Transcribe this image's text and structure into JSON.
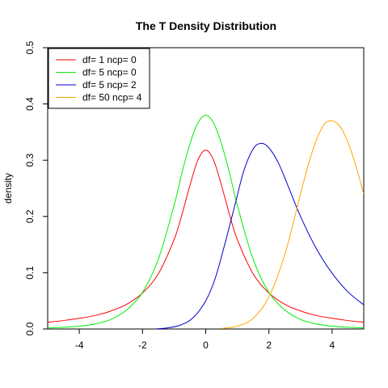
{
  "chart_data": {
    "type": "line",
    "title": "The T Density Distribution",
    "xlabel": "",
    "ylabel": "density",
    "xlim": [
      -5,
      5
    ],
    "ylim": [
      0,
      0.5
    ],
    "x_ticks": [
      -4,
      -2,
      0,
      2,
      4
    ],
    "x_tick_labels": [
      "-4",
      "-2",
      "0",
      "2",
      "4"
    ],
    "y_ticks": [
      0.0,
      0.1,
      0.2,
      0.3,
      0.4,
      0.5
    ],
    "y_tick_labels": [
      "0.0",
      "0.1",
      "0.2",
      "0.3",
      "0.4",
      "0.5"
    ],
    "grid": false,
    "legend_position": "top-left",
    "series": [
      {
        "name": "df= 1  ncp= 0",
        "color": "#ff0000",
        "x": [
          -5,
          -4.5,
          -4,
          -3.5,
          -3,
          -2.5,
          -2,
          -1.5,
          -1,
          -0.75,
          -0.5,
          -0.25,
          0,
          0.25,
          0.5,
          0.75,
          1,
          1.5,
          2,
          2.5,
          3,
          3.5,
          4,
          4.5,
          5
        ],
        "y": [
          0.012,
          0.015,
          0.019,
          0.024,
          0.032,
          0.044,
          0.064,
          0.098,
          0.159,
          0.204,
          0.255,
          0.3,
          0.318,
          0.3,
          0.255,
          0.204,
          0.159,
          0.098,
          0.064,
          0.044,
          0.032,
          0.024,
          0.019,
          0.015,
          0.012
        ]
      },
      {
        "name": "df= 5  ncp= 0",
        "color": "#00ee00",
        "x": [
          -5,
          -4.5,
          -4,
          -3.5,
          -3,
          -2.5,
          -2,
          -1.5,
          -1,
          -0.75,
          -0.5,
          -0.25,
          0,
          0.25,
          0.5,
          0.75,
          1,
          1.5,
          2,
          2.5,
          3,
          3.5,
          4,
          4.5,
          5
        ],
        "y": [
          0.002,
          0.003,
          0.005,
          0.009,
          0.017,
          0.034,
          0.065,
          0.124,
          0.22,
          0.278,
          0.329,
          0.366,
          0.38,
          0.366,
          0.329,
          0.278,
          0.22,
          0.124,
          0.065,
          0.034,
          0.017,
          0.009,
          0.005,
          0.003,
          0.002
        ]
      },
      {
        "name": "df= 5  ncp= 2",
        "color": "#0000cc",
        "x": [
          -1.6,
          -1.2,
          -0.8,
          -0.4,
          0,
          0.3,
          0.6,
          0.9,
          1.2,
          1.5,
          1.75,
          2,
          2.3,
          2.6,
          3,
          3.5,
          4,
          4.5,
          5
        ],
        "y": [
          0.0,
          0.002,
          0.007,
          0.02,
          0.05,
          0.09,
          0.15,
          0.215,
          0.28,
          0.32,
          0.33,
          0.322,
          0.295,
          0.255,
          0.2,
          0.143,
          0.099,
          0.066,
          0.043
        ]
      },
      {
        "name": "df= 50  ncp= 4",
        "color": "#ffa500",
        "x": [
          0.5,
          1,
          1.5,
          2,
          2.5,
          3,
          3.25,
          3.5,
          3.75,
          4,
          4.25,
          4.5,
          4.75,
          5
        ],
        "y": [
          0.001,
          0.005,
          0.019,
          0.057,
          0.132,
          0.24,
          0.293,
          0.336,
          0.364,
          0.37,
          0.36,
          0.332,
          0.29,
          0.24
        ]
      }
    ]
  }
}
